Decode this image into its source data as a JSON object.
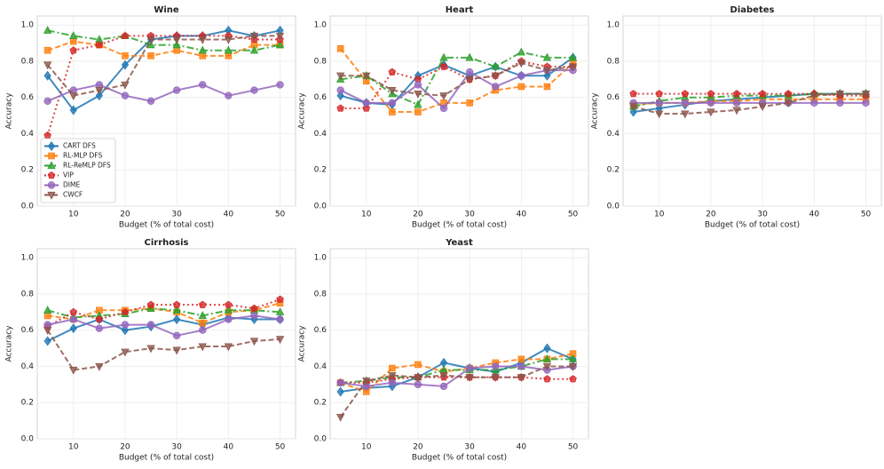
{
  "chart_data": [
    {
      "type": "line",
      "title": "Wine",
      "x_label": "Budget (% of total cost)",
      "y_label": "Accuracy",
      "grid": true,
      "legend": "lower left",
      "x": [
        5,
        10,
        15,
        20,
        25,
        30,
        35,
        40,
        45,
        50
      ],
      "xlim": [
        3,
        53
      ],
      "xticks": [
        10,
        20,
        30,
        40,
        50
      ],
      "ylim": [
        0,
        1.05
      ],
      "yticks": [
        {
          "value": 0,
          "label": "0.0"
        },
        {
          "value": 0.2,
          "label": "0.2"
        },
        {
          "value": 0.4,
          "label": "0.4"
        },
        {
          "value": 0.6,
          "label": "0.6"
        },
        {
          "value": 0.8,
          "label": "0.8"
        },
        {
          "value": 1.0,
          "label": "1.0"
        }
      ],
      "series": [
        {
          "name": "CART DFS",
          "color": "#1f77b4",
          "marker": "diamond",
          "dash": "solid",
          "values": [
            0.72,
            0.53,
            0.61,
            0.78,
            0.92,
            0.94,
            0.94,
            0.97,
            0.94,
            0.97
          ]
        },
        {
          "name": "RL-MLP DFS",
          "color": "#ff7f0e",
          "marker": "square",
          "dash": "dashed",
          "values": [
            0.86,
            0.91,
            0.89,
            0.83,
            0.83,
            0.86,
            0.83,
            0.83,
            0.89,
            0.89
          ]
        },
        {
          "name": "RL-ReMLP DFS",
          "color": "#2ca02c",
          "marker": "triangle-up",
          "dash": "dashdot",
          "values": [
            0.97,
            0.94,
            0.92,
            0.94,
            0.89,
            0.89,
            0.86,
            0.86,
            0.86,
            0.89
          ]
        },
        {
          "name": "VIP",
          "color": "#d62728",
          "marker": "pentagon",
          "dash": "dotted",
          "values": [
            0.39,
            0.86,
            0.89,
            0.94,
            0.94,
            0.94,
            0.94,
            0.94,
            0.92,
            0.92
          ]
        },
        {
          "name": "DIME",
          "color": "#9467bd",
          "marker": "circle",
          "dash": "solid",
          "values": [
            0.58,
            0.64,
            0.67,
            0.61,
            0.58,
            0.64,
            0.67,
            0.61,
            0.64,
            0.67
          ]
        },
        {
          "name": "CWCF",
          "color": "#8c564b",
          "marker": "triangle-down",
          "dash": "dashed",
          "values": [
            0.78,
            0.61,
            0.64,
            0.67,
            0.92,
            0.92,
            0.92,
            0.92,
            0.94,
            0.94
          ]
        }
      ]
    },
    {
      "type": "line",
      "title": "Heart",
      "x_label": "Budget (% of total cost)",
      "y_label": "Accuracy",
      "grid": true,
      "x": [
        5,
        10,
        15,
        20,
        25,
        30,
        35,
        40,
        45,
        50
      ],
      "xlim": [
        3,
        53
      ],
      "xticks": [
        10,
        20,
        30,
        40,
        50
      ],
      "ylim": [
        0,
        1.05
      ],
      "yticks": [
        {
          "value": 0,
          "label": "0.0"
        },
        {
          "value": 0.2,
          "label": "0.2"
        },
        {
          "value": 0.4,
          "label": "0.4"
        },
        {
          "value": 0.6,
          "label": "0.6"
        },
        {
          "value": 0.8,
          "label": "0.8"
        },
        {
          "value": 1.0,
          "label": "1.0"
        }
      ],
      "series": [
        {
          "color": "#1f77b4",
          "marker": "diamond",
          "dash": "solid",
          "values": [
            0.61,
            0.57,
            0.56,
            0.72,
            0.78,
            0.72,
            0.77,
            0.72,
            0.72,
            0.82
          ]
        },
        {
          "color": "#ff7f0e",
          "marker": "square",
          "dash": "dashed",
          "values": [
            0.87,
            0.69,
            0.52,
            0.52,
            0.57,
            0.57,
            0.64,
            0.66,
            0.66,
            0.79
          ]
        },
        {
          "color": "#2ca02c",
          "marker": "triangle-up",
          "dash": "dashdot",
          "values": [
            0.7,
            0.72,
            0.62,
            0.56,
            0.82,
            0.82,
            0.77,
            0.85,
            0.82,
            0.82
          ]
        },
        {
          "color": "#d62728",
          "marker": "pentagon",
          "dash": "dotted",
          "values": [
            0.54,
            0.54,
            0.74,
            0.7,
            0.77,
            0.7,
            0.72,
            0.8,
            0.77,
            0.77
          ]
        },
        {
          "color": "#9467bd",
          "marker": "circle",
          "dash": "solid",
          "values": [
            0.64,
            0.57,
            0.57,
            0.67,
            0.54,
            0.74,
            0.66,
            0.72,
            0.75,
            0.75
          ]
        },
        {
          "color": "#8c564b",
          "marker": "triangle-down",
          "dash": "dashed",
          "values": [
            0.72,
            0.72,
            0.64,
            0.62,
            0.61,
            0.7,
            0.72,
            0.79,
            0.75,
            0.77
          ]
        }
      ]
    },
    {
      "type": "line",
      "title": "Diabetes",
      "x_label": "Budget (% of total cost)",
      "y_label": "Accuracy",
      "grid": true,
      "x": [
        5,
        10,
        15,
        20,
        25,
        30,
        35,
        40,
        45,
        50
      ],
      "xlim": [
        3,
        53
      ],
      "xticks": [
        10,
        20,
        30,
        40,
        50
      ],
      "ylim": [
        0,
        1.05
      ],
      "yticks": [
        {
          "value": 0,
          "label": "0.0"
        },
        {
          "value": 0.2,
          "label": "0.2"
        },
        {
          "value": 0.4,
          "label": "0.4"
        },
        {
          "value": 0.6,
          "label": "0.6"
        },
        {
          "value": 0.8,
          "label": "0.8"
        },
        {
          "value": 1.0,
          "label": "1.0"
        }
      ],
      "series": [
        {
          "color": "#1f77b4",
          "marker": "diamond",
          "dash": "solid",
          "values": [
            0.52,
            0.54,
            0.56,
            0.58,
            0.59,
            0.6,
            0.61,
            0.62,
            0.62,
            0.62
          ]
        },
        {
          "color": "#ff7f0e",
          "marker": "square",
          "dash": "dashed",
          "values": [
            0.56,
            0.57,
            0.57,
            0.58,
            0.58,
            0.59,
            0.59,
            0.59,
            0.59,
            0.59
          ]
        },
        {
          "color": "#2ca02c",
          "marker": "triangle-up",
          "dash": "dashdot",
          "values": [
            0.55,
            0.58,
            0.6,
            0.6,
            0.61,
            0.61,
            0.61,
            0.62,
            0.62,
            0.62
          ]
        },
        {
          "color": "#d62728",
          "marker": "pentagon",
          "dash": "dotted",
          "values": [
            0.62,
            0.62,
            0.62,
            0.62,
            0.62,
            0.62,
            0.62,
            0.62,
            0.61,
            0.61
          ]
        },
        {
          "color": "#9467bd",
          "marker": "circle",
          "dash": "solid",
          "values": [
            0.57,
            0.57,
            0.57,
            0.57,
            0.57,
            0.57,
            0.57,
            0.57,
            0.57,
            0.57
          ]
        },
        {
          "color": "#8c564b",
          "marker": "triangle-down",
          "dash": "dashed",
          "values": [
            0.55,
            0.51,
            0.51,
            0.52,
            0.53,
            0.55,
            0.57,
            0.61,
            0.62,
            0.62
          ]
        }
      ]
    },
    {
      "type": "line",
      "title": "Cirrhosis",
      "x_label": "Budget (% of total cost)",
      "y_label": "Accuracy",
      "grid": true,
      "x": [
        5,
        10,
        15,
        20,
        25,
        30,
        35,
        40,
        45,
        50
      ],
      "xlim": [
        3,
        53
      ],
      "xticks": [
        10,
        20,
        30,
        40,
        50
      ],
      "ylim": [
        0,
        1.05
      ],
      "yticks": [
        {
          "value": 0,
          "label": "0.0"
        },
        {
          "value": 0.2,
          "label": "0.2"
        },
        {
          "value": 0.4,
          "label": "0.4"
        },
        {
          "value": 0.6,
          "label": "0.6"
        },
        {
          "value": 0.8,
          "label": "0.8"
        },
        {
          "value": 1.0,
          "label": "1.0"
        }
      ],
      "series": [
        {
          "color": "#1f77b4",
          "marker": "diamond",
          "dash": "solid",
          "values": [
            0.54,
            0.61,
            0.66,
            0.6,
            0.62,
            0.66,
            0.63,
            0.67,
            0.66,
            0.66
          ]
        },
        {
          "color": "#ff7f0e",
          "marker": "square",
          "dash": "dashed",
          "values": [
            0.68,
            0.66,
            0.71,
            0.71,
            0.72,
            0.7,
            0.64,
            0.7,
            0.71,
            0.75
          ]
        },
        {
          "color": "#2ca02c",
          "marker": "triangle-up",
          "dash": "dashdot",
          "values": [
            0.71,
            0.67,
            0.68,
            0.69,
            0.72,
            0.71,
            0.68,
            0.71,
            0.71,
            0.7
          ]
        },
        {
          "color": "#d62728",
          "marker": "pentagon",
          "dash": "dotted",
          "values": [
            0.62,
            0.7,
            0.66,
            0.7,
            0.74,
            0.74,
            0.74,
            0.74,
            0.72,
            0.77
          ]
        },
        {
          "color": "#9467bd",
          "marker": "circle",
          "dash": "solid",
          "values": [
            0.63,
            0.66,
            0.61,
            0.63,
            0.63,
            0.57,
            0.6,
            0.66,
            0.68,
            0.66
          ]
        },
        {
          "color": "#8c564b",
          "marker": "triangle-down",
          "dash": "dashed",
          "values": [
            0.6,
            0.38,
            0.4,
            0.48,
            0.5,
            0.49,
            0.51,
            0.51,
            0.54,
            0.55
          ]
        }
      ]
    },
    {
      "type": "line",
      "title": "Yeast",
      "x_label": "Budget (% of total cost)",
      "y_label": "Accuracy",
      "grid": true,
      "x": [
        5,
        10,
        15,
        20,
        25,
        30,
        35,
        40,
        45,
        50
      ],
      "xlim": [
        3,
        53
      ],
      "xticks": [
        10,
        20,
        30,
        40,
        50
      ],
      "ylim": [
        0,
        1.05
      ],
      "yticks": [
        {
          "value": 0,
          "label": "0.0"
        },
        {
          "value": 0.2,
          "label": "0.2"
        },
        {
          "value": 0.4,
          "label": "0.4"
        },
        {
          "value": 0.6,
          "label": "0.6"
        },
        {
          "value": 0.8,
          "label": "0.8"
        },
        {
          "value": 1.0,
          "label": "1.0"
        }
      ],
      "series": [
        {
          "color": "#1f77b4",
          "marker": "diamond",
          "dash": "solid",
          "values": [
            0.26,
            0.28,
            0.29,
            0.34,
            0.42,
            0.39,
            0.37,
            0.42,
            0.5,
            0.44
          ]
        },
        {
          "color": "#ff7f0e",
          "marker": "square",
          "dash": "dashed",
          "values": [
            0.31,
            0.26,
            0.39,
            0.41,
            0.37,
            0.39,
            0.42,
            0.44,
            0.44,
            0.47
          ]
        },
        {
          "color": "#2ca02c",
          "marker": "triangle-up",
          "dash": "dashdot",
          "values": [
            0.31,
            0.32,
            0.34,
            0.34,
            0.38,
            0.38,
            0.38,
            0.4,
            0.44,
            0.44
          ]
        },
        {
          "color": "#d62728",
          "marker": "pentagon",
          "dash": "dotted",
          "values": [
            0.31,
            0.31,
            0.33,
            0.34,
            0.34,
            0.34,
            0.34,
            0.34,
            0.33,
            0.33
          ]
        },
        {
          "color": "#9467bd",
          "marker": "circle",
          "dash": "solid",
          "values": [
            0.31,
            0.29,
            0.31,
            0.3,
            0.29,
            0.39,
            0.4,
            0.4,
            0.38,
            0.4
          ]
        },
        {
          "color": "#8c564b",
          "marker": "triangle-down",
          "dash": "dashed",
          "values": [
            0.12,
            0.32,
            0.35,
            0.34,
            0.35,
            0.34,
            0.34,
            0.34,
            0.4,
            0.4
          ]
        }
      ]
    }
  ]
}
